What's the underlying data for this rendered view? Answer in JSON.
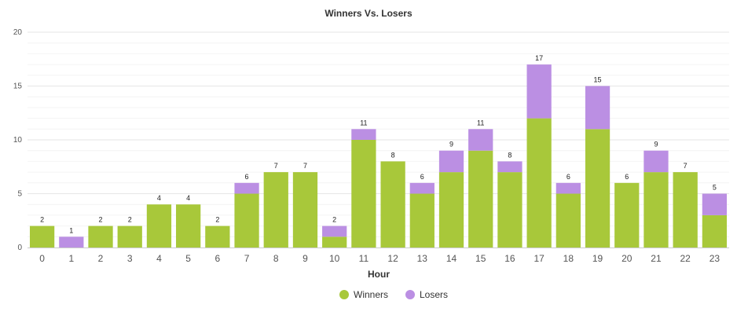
{
  "chart_data": {
    "type": "bar",
    "stacked": true,
    "title": "Winners Vs. Losers",
    "xlabel": "Hour",
    "ylabel": "",
    "ylim": [
      0,
      20
    ],
    "yticks": [
      0,
      5,
      10,
      15,
      20
    ],
    "grid": true,
    "legend_position": "bottom-center",
    "categories": [
      "0",
      "1",
      "2",
      "3",
      "4",
      "5",
      "6",
      "7",
      "8",
      "9",
      "10",
      "11",
      "12",
      "13",
      "14",
      "15",
      "16",
      "17",
      "18",
      "19",
      "20",
      "21",
      "22",
      "23"
    ],
    "series": [
      {
        "name": "Winners",
        "color": "#a8c83a",
        "values": [
          2,
          0,
          2,
          2,
          4,
          4,
          2,
          5,
          7,
          7,
          1,
          10,
          8,
          5,
          7,
          9,
          7,
          12,
          5,
          11,
          6,
          7,
          7,
          3
        ]
      },
      {
        "name": "Losers",
        "color": "#bb8fe3",
        "values": [
          0,
          1,
          0,
          0,
          0,
          0,
          0,
          1,
          0,
          0,
          1,
          1,
          0,
          1,
          2,
          2,
          1,
          5,
          1,
          4,
          0,
          2,
          0,
          2
        ]
      }
    ],
    "totals": [
      2,
      1,
      2,
      2,
      4,
      4,
      2,
      6,
      7,
      7,
      2,
      11,
      8,
      6,
      9,
      11,
      8,
      17,
      6,
      15,
      6,
      9,
      7,
      5
    ]
  }
}
